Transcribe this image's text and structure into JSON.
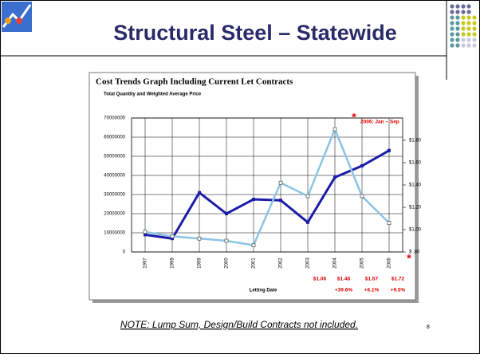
{
  "slide_title": "Structural Steel – Statewide",
  "note": "NOTE:  Lump Sum, Design/Build Contracts not included.",
  "page_number": "8",
  "chart_data": {
    "type": "line",
    "title": "Cost Trends Graph Including Current Let Contracts",
    "subtitle": "Total Quantity and Weighted Average Price",
    "x_label": "Letting Date",
    "categories": [
      "1997",
      "1998",
      "1999",
      "2000",
      "2001",
      "2002",
      "2003",
      "2004",
      "2005",
      "2006"
    ],
    "series": [
      {
        "name": "Total Quantity",
        "color": "#1c1ca8",
        "axis": "y",
        "values": [
          9000000,
          7000000,
          31000000,
          20000000,
          27500000,
          27000000,
          15500000,
          39000000,
          45000000,
          53000000
        ]
      },
      {
        "name": "Weighted Average Price",
        "color": "#8cc4e6",
        "axis": "y2",
        "values": [
          0.98,
          0.94,
          0.92,
          0.9,
          0.86,
          1.42,
          1.3,
          1.9,
          1.3,
          1.06
        ]
      }
    ],
    "ylim": [
      0,
      70000000
    ],
    "yticks": [
      0,
      10000000,
      20000000,
      30000000,
      40000000,
      50000000,
      60000000,
      70000000
    ],
    "y2lim": [
      0.8,
      2.0
    ],
    "y2ticks": [
      {
        "value": 0.8,
        "label": "$ .80"
      },
      {
        "value": 1.0,
        "label": "$1.00"
      },
      {
        "value": 1.2,
        "label": "$1.20"
      },
      {
        "value": 1.4,
        "label": "$1.40"
      },
      {
        "value": 1.6,
        "label": "$1.60"
      },
      {
        "value": 1.8,
        "label": "$1.80"
      }
    ],
    "grid": true,
    "annotations": [
      "*",
      "2006: Jan – Sep",
      "*",
      "$1.06",
      "$1.48",
      "$1.57",
      "$1.72",
      "+39.6%",
      "+6.1%",
      "+9.5%"
    ]
  }
}
